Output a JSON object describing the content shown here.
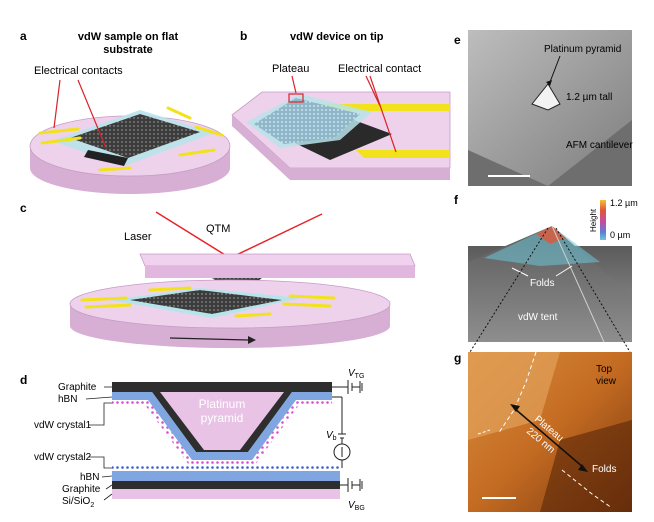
{
  "panel_a": {
    "letter": "a",
    "title_line1": "vdW sample on flat",
    "title_line2": "substrate",
    "contacts_label": "Electrical contacts"
  },
  "panel_b": {
    "letter": "b",
    "title": "vdW device on tip",
    "plateau_label": "Plateau",
    "contact_label": "Electrical contact"
  },
  "panel_c": {
    "letter": "c",
    "laser_label": "Laser",
    "qtm_label": "QTM"
  },
  "panel_d": {
    "letter": "d",
    "layers_top": [
      "Graphite",
      "hBN",
      "vdW crystal1"
    ],
    "layers_bottom": [
      "vdW crystal2",
      "hBN",
      "Graphite",
      "Si/SiO"
    ],
    "sio2_subscript": "2",
    "pyramid_line1": "Platinum",
    "pyramid_line2": "pyramid",
    "vtg": "V",
    "vtg_sub": "TG",
    "vb": "V",
    "vb_sub": "b",
    "vbg": "V",
    "vbg_sub": "BG"
  },
  "panel_e": {
    "letter": "e",
    "pyramid_label": "Platinum pyramid",
    "height_label": "1.2 µm tall",
    "cantilever_label": "AFM cantilever"
  },
  "panel_f": {
    "letter": "f",
    "height_axis": "Height",
    "height_max": "1.2 µm",
    "height_min": "0 µm",
    "folds_label": "Folds",
    "tent_label": "vdW tent"
  },
  "panel_g": {
    "letter": "g",
    "view_line1": "Top",
    "view_line2": "view",
    "plateau_label": "Plateau",
    "size_label": "220 nm",
    "folds_label": "Folds"
  },
  "colors": {
    "substrate_pink": "#e8c3e6",
    "hbn_blue": "#7fa6e0",
    "graphite": "#333333",
    "contact_yellow": "#f2e21b",
    "laser_red": "#e8232b"
  }
}
